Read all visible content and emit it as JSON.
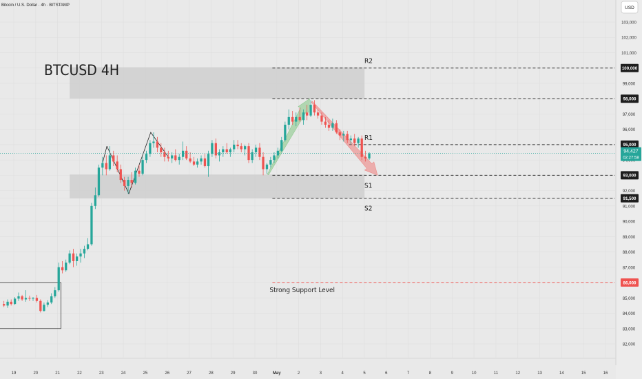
{
  "header": {
    "symbol": "Bitcoin / U.S. Dollar · 4h · BITSTAMP"
  },
  "currency_button": "USD",
  "colors": {
    "up": "#26a69a",
    "down": "#ef5350",
    "level_line": "#333333",
    "support_line": "#ef5350",
    "zone": "#cfcfcf",
    "price_line": "#26a69a"
  },
  "chart_data": {
    "type": "candlestick",
    "title": "BTCUSD 4H",
    "ylim": [
      82000,
      104000
    ],
    "y_ticks": [
      {
        "value": 103000,
        "label": "103,000"
      },
      {
        "value": 102000,
        "label": "102,000"
      },
      {
        "value": 101000,
        "label": "101,000"
      },
      {
        "value": 99000,
        "label": "99,000"
      },
      {
        "value": 97000,
        "label": "97,000"
      },
      {
        "value": 96000,
        "label": "96,000"
      },
      {
        "value": 94000,
        "label": "94,000"
      },
      {
        "value": 92000,
        "label": "92,000"
      },
      {
        "value": 91000,
        "label": "91,000"
      },
      {
        "value": 90000,
        "label": "90,000"
      },
      {
        "value": 89000,
        "label": "89,000"
      },
      {
        "value": 88000,
        "label": "88,000"
      },
      {
        "value": 87000,
        "label": "87,000"
      },
      {
        "value": 85000,
        "label": "85,000"
      },
      {
        "value": 84000,
        "label": "84,000"
      },
      {
        "value": 83000,
        "label": "83,000"
      },
      {
        "value": 82000,
        "label": "82,000"
      }
    ],
    "x_ticks": [
      {
        "day": 19,
        "label": "19"
      },
      {
        "day": 20,
        "label": "20"
      },
      {
        "day": 21,
        "label": "21"
      },
      {
        "day": 22,
        "label": "22"
      },
      {
        "day": 23,
        "label": "23"
      },
      {
        "day": 24,
        "label": "24"
      },
      {
        "day": 25,
        "label": "25"
      },
      {
        "day": 26,
        "label": "26"
      },
      {
        "day": 27,
        "label": "27"
      },
      {
        "day": 28,
        "label": "28"
      },
      {
        "day": 29,
        "label": "29"
      },
      {
        "day": 30,
        "label": "30"
      },
      {
        "day": 31,
        "label": "May",
        "bold": true
      },
      {
        "day": 32,
        "label": "2"
      },
      {
        "day": 33,
        "label": "3"
      },
      {
        "day": 34,
        "label": "4"
      },
      {
        "day": 35,
        "label": "5"
      },
      {
        "day": 36,
        "label": "6"
      },
      {
        "day": 37,
        "label": "7"
      },
      {
        "day": 38,
        "label": "8"
      },
      {
        "day": 39,
        "label": "9"
      },
      {
        "day": 40,
        "label": "10"
      },
      {
        "day": 41,
        "label": "11"
      },
      {
        "day": 42,
        "label": "12"
      },
      {
        "day": 43,
        "label": "13"
      },
      {
        "day": 44,
        "label": "14"
      },
      {
        "day": 45,
        "label": "15"
      },
      {
        "day": 46,
        "label": "16"
      }
    ],
    "levels": [
      {
        "name": "R2",
        "value": 100000,
        "label": "100,000",
        "from_day": 30.8,
        "color": "#333333"
      },
      {
        "name": "",
        "value": 98000,
        "label": "98,000",
        "from_day": 30.8,
        "color": "#333333"
      },
      {
        "name": "R1",
        "value": 95000,
        "label": "95,000",
        "from_day": 34.3,
        "color": "#333333"
      },
      {
        "name": "S1",
        "value": 93000,
        "label": "93,000",
        "from_day": 30.8,
        "color": "#333333"
      },
      {
        "name": "S2",
        "value": 91500,
        "label": "91,500",
        "from_day": 30.8,
        "color": "#333333"
      },
      {
        "name": "Strong Support Level",
        "value": 86000,
        "label": "86,000",
        "from_day": 30.8,
        "color": "#ef5350"
      }
    ],
    "zones": [
      {
        "from_day": 21.55,
        "to_day": 35.0,
        "low": 98000,
        "high": 100050
      },
      {
        "from_day": 21.55,
        "to_day": 35.0,
        "low": 91500,
        "high": 93050
      }
    ],
    "last_price": {
      "value": 94427,
      "label": "94,427",
      "countdown": "02:27:58"
    },
    "candles": [
      {
        "d": 18.55,
        "o": 84600,
        "h": 84800,
        "l": 84400,
        "c": 84500
      },
      {
        "d": 18.72,
        "o": 84500,
        "h": 84900,
        "l": 84350,
        "c": 84750
      },
      {
        "d": 18.88,
        "o": 84750,
        "h": 84900,
        "l": 84500,
        "c": 84600
      },
      {
        "d": 19.05,
        "o": 84600,
        "h": 85050,
        "l": 84550,
        "c": 84950
      },
      {
        "d": 19.22,
        "o": 84950,
        "h": 85350,
        "l": 84800,
        "c": 85100
      },
      {
        "d": 19.38,
        "o": 85100,
        "h": 85200,
        "l": 84800,
        "c": 84900
      },
      {
        "d": 19.55,
        "o": 84900,
        "h": 85500,
        "l": 84750,
        "c": 85000
      },
      {
        "d": 19.72,
        "o": 85000,
        "h": 85150,
        "l": 84800,
        "c": 84950
      },
      {
        "d": 19.88,
        "o": 84950,
        "h": 85050,
        "l": 84800,
        "c": 85000
      },
      {
        "d": 20.05,
        "o": 85000,
        "h": 85200,
        "l": 84700,
        "c": 84800
      },
      {
        "d": 20.22,
        "o": 84800,
        "h": 84900,
        "l": 84050,
        "c": 84150
      },
      {
        "d": 20.38,
        "o": 84150,
        "h": 84700,
        "l": 84100,
        "c": 84550
      },
      {
        "d": 20.55,
        "o": 84550,
        "h": 84850,
        "l": 84400,
        "c": 84700
      },
      {
        "d": 20.72,
        "o": 84700,
        "h": 85300,
        "l": 84600,
        "c": 85100
      },
      {
        "d": 20.88,
        "o": 85100,
        "h": 85700,
        "l": 85000,
        "c": 85500
      },
      {
        "d": 21.05,
        "o": 85500,
        "h": 87300,
        "l": 85400,
        "c": 87000
      },
      {
        "d": 21.22,
        "o": 87000,
        "h": 87400,
        "l": 86600,
        "c": 86800
      },
      {
        "d": 21.38,
        "o": 86800,
        "h": 87500,
        "l": 86700,
        "c": 87300
      },
      {
        "d": 21.55,
        "o": 87300,
        "h": 88100,
        "l": 87200,
        "c": 87900
      },
      {
        "d": 21.72,
        "o": 87900,
        "h": 88200,
        "l": 87000,
        "c": 87400
      },
      {
        "d": 21.88,
        "o": 87400,
        "h": 87900,
        "l": 87100,
        "c": 87700
      },
      {
        "d": 22.05,
        "o": 87700,
        "h": 88200,
        "l": 87300,
        "c": 87900
      },
      {
        "d": 22.22,
        "o": 87900,
        "h": 88400,
        "l": 87600,
        "c": 88200
      },
      {
        "d": 22.38,
        "o": 88200,
        "h": 88900,
        "l": 88100,
        "c": 88500
      },
      {
        "d": 22.55,
        "o": 88500,
        "h": 91200,
        "l": 88400,
        "c": 91000
      },
      {
        "d": 22.72,
        "o": 91000,
        "h": 92200,
        "l": 90800,
        "c": 91700
      },
      {
        "d": 22.88,
        "o": 91700,
        "h": 93700,
        "l": 91600,
        "c": 93500
      },
      {
        "d": 23.05,
        "o": 93500,
        "h": 94200,
        "l": 93000,
        "c": 93800
      },
      {
        "d": 23.22,
        "o": 93800,
        "h": 94300,
        "l": 93000,
        "c": 93400
      },
      {
        "d": 23.38,
        "o": 93400,
        "h": 94900,
        "l": 93300,
        "c": 94300
      },
      {
        "d": 23.55,
        "o": 94300,
        "h": 94600,
        "l": 93600,
        "c": 93900
      },
      {
        "d": 23.72,
        "o": 93900,
        "h": 94300,
        "l": 93200,
        "c": 93400
      },
      {
        "d": 23.88,
        "o": 93400,
        "h": 93700,
        "l": 92500,
        "c": 92700
      },
      {
        "d": 24.05,
        "o": 92700,
        "h": 92900,
        "l": 92000,
        "c": 92300
      },
      {
        "d": 24.22,
        "o": 92300,
        "h": 92900,
        "l": 91800,
        "c": 92700
      },
      {
        "d": 24.38,
        "o": 92700,
        "h": 93200,
        "l": 92200,
        "c": 92500
      },
      {
        "d": 24.55,
        "o": 92500,
        "h": 93500,
        "l": 92400,
        "c": 93300
      },
      {
        "d": 24.72,
        "o": 93300,
        "h": 93700,
        "l": 92900,
        "c": 93100
      },
      {
        "d": 24.88,
        "o": 93100,
        "h": 94200,
        "l": 93000,
        "c": 94000
      },
      {
        "d": 25.05,
        "o": 94000,
        "h": 94600,
        "l": 93800,
        "c": 94400
      },
      {
        "d": 25.22,
        "o": 94400,
        "h": 95300,
        "l": 94200,
        "c": 95100
      },
      {
        "d": 25.38,
        "o": 95100,
        "h": 95800,
        "l": 94800,
        "c": 95200
      },
      {
        "d": 25.55,
        "o": 95200,
        "h": 95500,
        "l": 94500,
        "c": 94800
      },
      {
        "d": 25.72,
        "o": 94800,
        "h": 95100,
        "l": 94200,
        "c": 94500
      },
      {
        "d": 25.88,
        "o": 94500,
        "h": 94800,
        "l": 93900,
        "c": 94200
      },
      {
        "d": 26.05,
        "o": 94200,
        "h": 94600,
        "l": 93900,
        "c": 94100
      },
      {
        "d": 26.22,
        "o": 94100,
        "h": 94500,
        "l": 93800,
        "c": 94300
      },
      {
        "d": 26.38,
        "o": 94300,
        "h": 94700,
        "l": 93900,
        "c": 94000
      },
      {
        "d": 26.55,
        "o": 94000,
        "h": 94400,
        "l": 93700,
        "c": 94200
      },
      {
        "d": 26.72,
        "o": 94200,
        "h": 95200,
        "l": 94000,
        "c": 94600
      },
      {
        "d": 26.88,
        "o": 94600,
        "h": 94900,
        "l": 94000,
        "c": 94100
      },
      {
        "d": 27.05,
        "o": 94100,
        "h": 94500,
        "l": 93800,
        "c": 93900
      },
      {
        "d": 27.22,
        "o": 93900,
        "h": 94200,
        "l": 93600,
        "c": 93700
      },
      {
        "d": 27.38,
        "o": 93700,
        "h": 94100,
        "l": 93500,
        "c": 93900
      },
      {
        "d": 27.55,
        "o": 93900,
        "h": 94300,
        "l": 93700,
        "c": 94100
      },
      {
        "d": 27.72,
        "o": 94100,
        "h": 94400,
        "l": 93500,
        "c": 93600
      },
      {
        "d": 27.88,
        "o": 93600,
        "h": 94600,
        "l": 92900,
        "c": 94400
      },
      {
        "d": 28.05,
        "o": 94400,
        "h": 95300,
        "l": 94200,
        "c": 95100
      },
      {
        "d": 28.22,
        "o": 95100,
        "h": 95400,
        "l": 94100,
        "c": 94300
      },
      {
        "d": 28.38,
        "o": 94300,
        "h": 94700,
        "l": 93900,
        "c": 94500
      },
      {
        "d": 28.55,
        "o": 94500,
        "h": 94900,
        "l": 94200,
        "c": 94700
      },
      {
        "d": 28.72,
        "o": 94700,
        "h": 95100,
        "l": 94400,
        "c": 94500
      },
      {
        "d": 28.88,
        "o": 94500,
        "h": 94800,
        "l": 94200,
        "c": 94700
      },
      {
        "d": 29.05,
        "o": 94700,
        "h": 95300,
        "l": 94500,
        "c": 95000
      },
      {
        "d": 29.22,
        "o": 95000,
        "h": 95300,
        "l": 94700,
        "c": 94900
      },
      {
        "d": 29.38,
        "o": 94900,
        "h": 95100,
        "l": 94500,
        "c": 94700
      },
      {
        "d": 29.55,
        "o": 94700,
        "h": 95000,
        "l": 94300,
        "c": 94900
      },
      {
        "d": 29.72,
        "o": 94900,
        "h": 95100,
        "l": 93800,
        "c": 94000
      },
      {
        "d": 29.88,
        "o": 94000,
        "h": 94700,
        "l": 93800,
        "c": 94500
      },
      {
        "d": 30.05,
        "o": 94500,
        "h": 95000,
        "l": 94200,
        "c": 94800
      },
      {
        "d": 30.22,
        "o": 94800,
        "h": 95100,
        "l": 94000,
        "c": 94200
      },
      {
        "d": 30.38,
        "o": 94200,
        "h": 94500,
        "l": 93000,
        "c": 93400
      },
      {
        "d": 30.55,
        "o": 93400,
        "h": 93800,
        "l": 93100,
        "c": 93700
      },
      {
        "d": 30.72,
        "o": 93700,
        "h": 94200,
        "l": 93500,
        "c": 94000
      },
      {
        "d": 30.88,
        "o": 94000,
        "h": 94500,
        "l": 93800,
        "c": 94300
      },
      {
        "d": 31.05,
        "o": 94300,
        "h": 94800,
        "l": 94100,
        "c": 94600
      },
      {
        "d": 31.22,
        "o": 94600,
        "h": 95500,
        "l": 94500,
        "c": 95300
      },
      {
        "d": 31.38,
        "o": 95300,
        "h": 96500,
        "l": 95200,
        "c": 96300
      },
      {
        "d": 31.55,
        "o": 96300,
        "h": 97300,
        "l": 96000,
        "c": 96800
      },
      {
        "d": 31.72,
        "o": 96800,
        "h": 97200,
        "l": 96300,
        "c": 96500
      },
      {
        "d": 31.88,
        "o": 96500,
        "h": 97100,
        "l": 96200,
        "c": 96800
      },
      {
        "d": 32.05,
        "o": 96800,
        "h": 97400,
        "l": 96500,
        "c": 96600
      },
      {
        "d": 32.22,
        "o": 96600,
        "h": 97300,
        "l": 96300,
        "c": 97100
      },
      {
        "d": 32.38,
        "o": 97100,
        "h": 97600,
        "l": 96600,
        "c": 96900
      },
      {
        "d": 32.55,
        "o": 96900,
        "h": 97900,
        "l": 96800,
        "c": 97600
      },
      {
        "d": 32.72,
        "o": 97600,
        "h": 97900,
        "l": 96900,
        "c": 97100
      },
      {
        "d": 32.88,
        "o": 97100,
        "h": 97300,
        "l": 96700,
        "c": 96900
      },
      {
        "d": 33.05,
        "o": 96900,
        "h": 97100,
        "l": 96300,
        "c": 96500
      },
      {
        "d": 33.22,
        "o": 96500,
        "h": 96800,
        "l": 96100,
        "c": 96300
      },
      {
        "d": 33.38,
        "o": 96300,
        "h": 96600,
        "l": 95900,
        "c": 96100
      },
      {
        "d": 33.55,
        "o": 96100,
        "h": 96700,
        "l": 95900,
        "c": 96400
      },
      {
        "d": 33.72,
        "o": 96400,
        "h": 96600,
        "l": 95700,
        "c": 95800
      },
      {
        "d": 33.88,
        "o": 95800,
        "h": 96000,
        "l": 95300,
        "c": 95600
      },
      {
        "d": 34.05,
        "o": 95600,
        "h": 95900,
        "l": 95200,
        "c": 95700
      },
      {
        "d": 34.22,
        "o": 95700,
        "h": 95900,
        "l": 95100,
        "c": 95300
      },
      {
        "d": 34.38,
        "o": 95300,
        "h": 95600,
        "l": 95000,
        "c": 95400
      },
      {
        "d": 34.55,
        "o": 95400,
        "h": 95700,
        "l": 94900,
        "c": 95100
      },
      {
        "d": 34.72,
        "o": 95100,
        "h": 95500,
        "l": 94800,
        "c": 95400
      },
      {
        "d": 34.88,
        "o": 95400,
        "h": 95600,
        "l": 94000,
        "c": 94200
      },
      {
        "d": 35.05,
        "o": 94200,
        "h": 94600,
        "l": 93900,
        "c": 94100
      },
      {
        "d": 35.22,
        "o": 94100,
        "h": 94500,
        "l": 94000,
        "c": 94427
      }
    ],
    "pattern_lines": [
      [
        [
          23.25,
          94900
        ],
        [
          24.25,
          91800
        ],
        [
          25.25,
          95800
        ],
        [
          26.1,
          94100
        ]
      ],
      [
        [
          23.05,
          93800
        ],
        [
          23.25,
          94900
        ]
      ]
    ],
    "arrows": [
      {
        "color": "green",
        "from": [
          30.6,
          93050
        ],
        "to": [
          32.5,
          98000
        ]
      },
      {
        "color": "red",
        "from": [
          32.6,
          97800
        ],
        "to": [
          35.6,
          93000
        ]
      }
    ],
    "boxes": [
      {
        "from_day": 17.4,
        "to_day": 21.15,
        "low": 83000,
        "high": 86000
      }
    ]
  }
}
